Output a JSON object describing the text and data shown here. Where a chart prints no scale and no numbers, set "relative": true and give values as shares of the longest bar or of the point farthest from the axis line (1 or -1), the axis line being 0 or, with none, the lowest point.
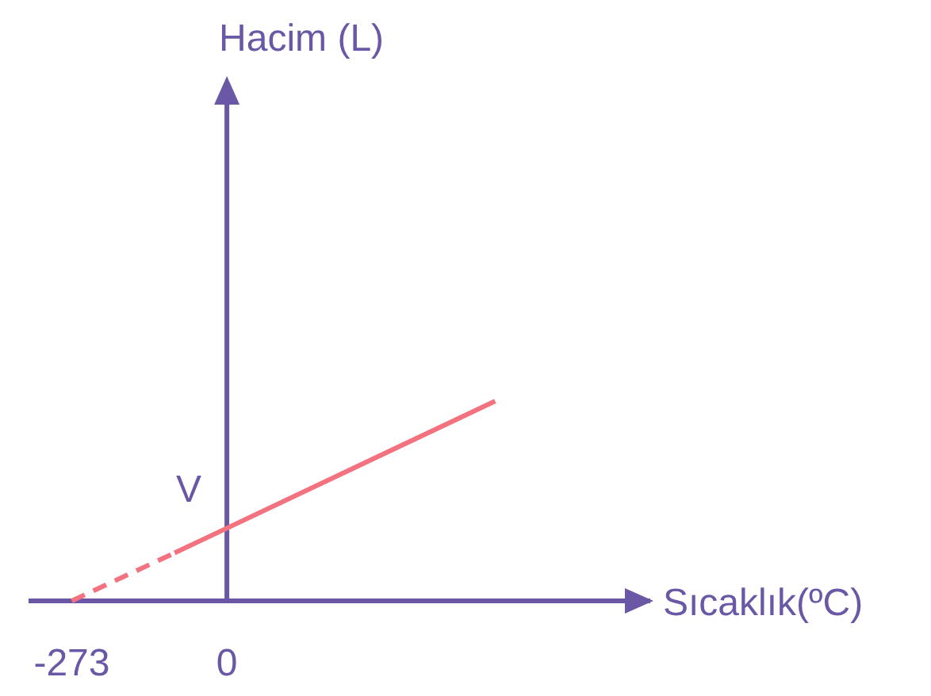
{
  "chart_data": {
    "type": "line",
    "relative": true,
    "xlabel": "Sıcaklık(ºC)",
    "xlim": [
      -349,
      745
    ],
    "xticks": [
      -273,
      0
    ],
    "marker": "none",
    "series": [
      {
        "color": "#f2737f",
        "x": [
          -273,
          -92
        ],
        "values": [
          0,
          0.24
        ],
        "line_style": "dashed"
      },
      {
        "color": "#f2737f",
        "x": [
          -92,
          472
        ],
        "values": [
          0.24,
          1
        ],
        "line_style": "solid"
      }
    ],
    "ref_lines": [
      {
        "axis": "x",
        "value": 0
      }
    ],
    "annotations": [
      "Hacim (L)",
      {
        "text": "V",
        "x": 0,
        "y": 0.37
      }
    ]
  }
}
